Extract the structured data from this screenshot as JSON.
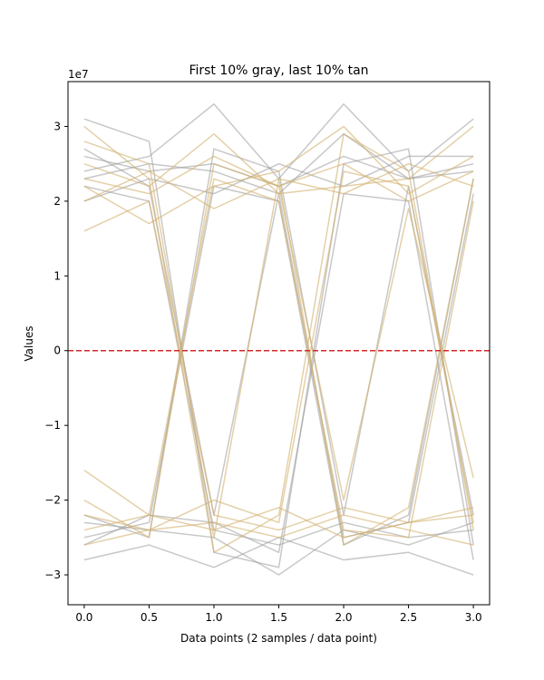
{
  "chart_data": {
    "type": "line",
    "title": "First 10% gray, last 10% tan",
    "xlabel": "Data points (2 samples / data point)",
    "ylabel": "Values",
    "y_offset_label": "1e7",
    "xlim": [
      -0.125,
      3.125
    ],
    "ylim": [
      -3.4,
      3.6
    ],
    "y_scale": 10000000,
    "x_ticks": [
      0.0,
      0.5,
      1.0,
      1.5,
      2.0,
      2.5,
      3.0
    ],
    "x_tick_labels": [
      "0.0",
      "0.5",
      "1.0",
      "1.5",
      "2.0",
      "2.5",
      "3.0"
    ],
    "y_ticks": [
      -3,
      -2,
      -1,
      0,
      1,
      2,
      3
    ],
    "y_tick_labels": [
      "−3",
      "−2",
      "−1",
      "0",
      "1",
      "2",
      "3"
    ],
    "x": [
      0.0,
      0.5,
      1.0,
      1.5,
      2.0,
      2.5,
      3.0
    ],
    "reference_line": {
      "y": 0,
      "color": "#d62728",
      "style": "dashed"
    },
    "grid": false,
    "series": [
      {
        "group": "gray",
        "color": "#9a9a9a",
        "values": [
          2.6,
          2.4,
          2.5,
          2.2,
          2.6,
          2.3,
          2.4
        ]
      },
      {
        "group": "gray",
        "color": "#9a9a9a",
        "values": [
          2.2,
          2.0,
          -2.4,
          -2.6,
          -2.3,
          -2.5,
          -2.4
        ]
      },
      {
        "group": "gray",
        "color": "#9a9a9a",
        "values": [
          -2.5,
          -2.3,
          2.2,
          2.0,
          -2.6,
          -2.2,
          2.3
        ]
      },
      {
        "group": "gray",
        "color": "#9a9a9a",
        "values": [
          3.1,
          2.8,
          -2.7,
          -2.9,
          2.5,
          2.7,
          -2.6
        ]
      },
      {
        "group": "gray",
        "color": "#9a9a9a",
        "values": [
          -2.8,
          -2.6,
          -2.9,
          -2.5,
          -2.8,
          -2.7,
          -3.0
        ]
      },
      {
        "group": "gray",
        "color": "#9a9a9a",
        "values": [
          2.4,
          2.6,
          3.3,
          2.3,
          3.3,
          2.4,
          3.1
        ]
      },
      {
        "group": "gray",
        "color": "#9a9a9a",
        "values": [
          -2.3,
          -2.4,
          -2.5,
          -3.0,
          -2.4,
          -2.6,
          -2.3
        ]
      },
      {
        "group": "gray",
        "color": "#9a9a9a",
        "values": [
          2.0,
          2.3,
          2.1,
          2.5,
          2.2,
          2.6,
          2.6
        ]
      },
      {
        "group": "gray",
        "color": "#9a9a9a",
        "values": [
          -2.2,
          -2.5,
          2.7,
          2.4,
          -2.2,
          2.2,
          -2.2
        ]
      },
      {
        "group": "gray",
        "color": "#9a9a9a",
        "values": [
          2.7,
          2.2,
          -2.2,
          2.1,
          -2.5,
          -2.3,
          2.1
        ]
      },
      {
        "group": "gray",
        "color": "#9a9a9a",
        "values": [
          -2.6,
          -2.2,
          -2.3,
          -2.7,
          2.1,
          2.0,
          -2.8
        ]
      },
      {
        "group": "gray",
        "color": "#9a9a9a",
        "values": [
          2.3,
          2.5,
          2.4,
          2.1,
          2.9,
          2.3,
          2.5
        ]
      },
      {
        "group": "tan",
        "color": "#d2b06e",
        "values": [
          2.3,
          2.1,
          2.6,
          2.2,
          2.5,
          2.0,
          2.4
        ]
      },
      {
        "group": "tan",
        "color": "#d2b06e",
        "values": [
          1.6,
          2.0,
          -2.2,
          -2.4,
          -2.1,
          -2.3,
          -2.2
        ]
      },
      {
        "group": "tan",
        "color": "#d2b06e",
        "values": [
          -1.6,
          -2.2,
          2.3,
          2.0,
          -2.4,
          -2.5,
          2.0
        ]
      },
      {
        "group": "tan",
        "color": "#d2b06e",
        "values": [
          3.0,
          2.3,
          -2.7,
          -2.2,
          2.9,
          2.4,
          -2.4
        ]
      },
      {
        "group": "tan",
        "color": "#d2b06e",
        "values": [
          -2.2,
          -2.4,
          -2.3,
          -2.5,
          -2.2,
          -2.4,
          -2.6
        ]
      },
      {
        "group": "tan",
        "color": "#d2b06e",
        "values": [
          2.5,
          2.2,
          2.9,
          2.1,
          2.2,
          2.3,
          3.0
        ]
      },
      {
        "group": "tan",
        "color": "#d2b06e",
        "values": [
          -2.4,
          -2.2,
          -2.4,
          -2.1,
          -2.5,
          -2.3,
          -2.1
        ]
      },
      {
        "group": "tan",
        "color": "#d2b06e",
        "values": [
          2.0,
          2.4,
          1.9,
          2.3,
          2.1,
          2.5,
          2.2
        ]
      },
      {
        "group": "tan",
        "color": "#d2b06e",
        "values": [
          -2.0,
          -2.5,
          2.5,
          2.2,
          -2.0,
          1.9,
          -1.7
        ]
      },
      {
        "group": "tan",
        "color": "#d2b06e",
        "values": [
          2.8,
          2.5,
          -2.5,
          2.3,
          -2.6,
          -2.1,
          2.3
        ]
      },
      {
        "group": "tan",
        "color": "#d2b06e",
        "values": [
          -2.6,
          -2.4,
          -2.0,
          -2.3,
          2.4,
          2.2,
          -2.3
        ]
      },
      {
        "group": "tan",
        "color": "#d2b06e",
        "values": [
          2.2,
          1.7,
          2.2,
          2.4,
          3.0,
          2.1,
          2.6
        ]
      }
    ]
  }
}
